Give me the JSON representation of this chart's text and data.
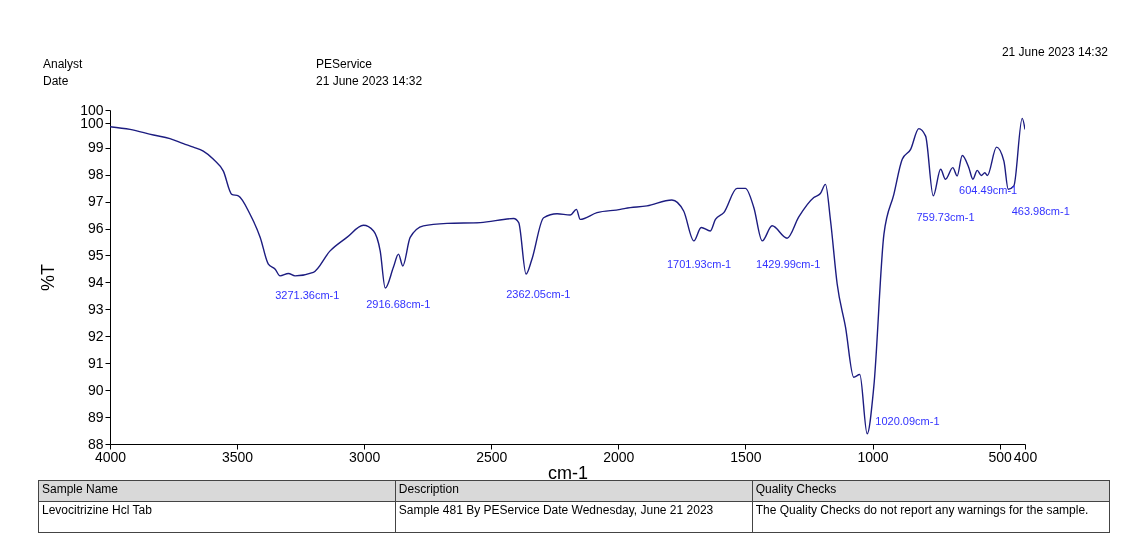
{
  "chart_data": {
    "type": "line",
    "xlabel": "cm-1",
    "ylabel": "%T",
    "xlim": [
      4000,
      400
    ],
    "ylim": [
      88,
      100.4
    ],
    "xticks": [
      4000,
      3500,
      3000,
      2500,
      2000,
      1500,
      1000,
      500,
      400
    ],
    "yticks": [
      88,
      89,
      90,
      91,
      92,
      93,
      94,
      95,
      96,
      97,
      98,
      99,
      {
        "value": 99.9,
        "label": "100"
      },
      {
        "value": 100.4,
        "label": "100"
      }
    ],
    "series": [
      {
        "color": "#1c1c80",
        "x": [
          4000,
          3921,
          3829,
          3764,
          3711,
          3672,
          3633,
          3593,
          3554,
          3521,
          3495,
          3449,
          3409,
          3377,
          3350,
          3331,
          3298,
          3272,
          3200,
          3134,
          3068,
          3003,
          2963,
          2937,
          2917,
          2885,
          2865,
          2848,
          2819,
          2767,
          2674,
          2543,
          2412,
          2392,
          2363,
          2340,
          2294,
          2241,
          2189,
          2165,
          2150,
          2084,
          1992,
          1972,
          1887,
          1789,
          1743,
          1703,
          1674,
          1638,
          1618,
          1585,
          1533,
          1500,
          1467,
          1434,
          1395,
          1336,
          1290,
          1231,
          1205,
          1185,
          1165,
          1139,
          1106,
          1074,
          1050,
          1021,
          995,
          955,
          916,
          883,
          850,
          818,
          791,
          761,
          732,
          713,
          684,
          667,
          647,
          621,
          605,
          588,
          572,
          558,
          548,
          512,
          483,
          466,
          444,
          411,
          400
        ],
        "values": [
          99.78,
          99.68,
          99.47,
          99.34,
          99.15,
          99.02,
          98.87,
          98.57,
          98.13,
          97.27,
          97.21,
          96.53,
          95.67,
          94.68,
          94.49,
          94.24,
          94.33,
          94.24,
          94.37,
          95.17,
          95.67,
          96.12,
          95.91,
          95.17,
          93.79,
          94.56,
          95.05,
          94.61,
          95.67,
          96.1,
          96.19,
          96.22,
          96.37,
          96.22,
          94.31,
          94.86,
          96.4,
          96.55,
          96.5,
          96.71,
          96.34,
          96.59,
          96.71,
          96.75,
          96.84,
          97.06,
          96.65,
          95.54,
          96.04,
          95.91,
          96.34,
          96.59,
          97.49,
          97.49,
          96.78,
          95.54,
          96.1,
          95.64,
          96.43,
          97.15,
          97.3,
          97.64,
          96.28,
          93.94,
          92.33,
          90.48,
          90.58,
          88.38,
          90.11,
          95.79,
          97.27,
          98.57,
          98.94,
          99.71,
          99.43,
          97.21,
          98.2,
          97.83,
          98.26,
          97.95,
          98.71,
          98.26,
          97.83,
          98.16,
          97.97,
          98.07,
          97.97,
          99.02,
          98.5,
          97.46,
          97.58,
          100.09,
          99.68
        ]
      }
    ],
    "annotations": [
      {
        "text": "3271.36cm-1",
        "x": 3271,
        "y": 94.24
      },
      {
        "text": "2916.68cm-1",
        "x": 2917,
        "y": 93.79
      },
      {
        "text": "2362.05cm-1",
        "x": 2362,
        "y": 94.31
      },
      {
        "text": "1701.93cm-1",
        "x": 1702,
        "y": 95.54
      },
      {
        "text": "1429.99cm-1",
        "x": 1430,
        "y": 95.54
      },
      {
        "text": "1020.09cm-1",
        "x": 1020,
        "y": 88.38
      },
      {
        "text": "759.73cm-1",
        "x": 760,
        "y": 97.21
      },
      {
        "text": "604.49cm-1",
        "x": 604,
        "y": 97.83
      },
      {
        "text": "463.98cm-1",
        "x": 464,
        "y": 97.46
      },
      "Analyst",
      "PEService",
      "Date",
      "21 June 2023 14:32",
      "21 June 2023 14:32",
      "Sample Name",
      "Description",
      "Quality Checks",
      "Levocitrizine Hcl Tab",
      "Sample 481 By PEService Date Wednesday, June 21 2023",
      "The Quality Checks do not report any warnings for the sample."
    ]
  }
}
